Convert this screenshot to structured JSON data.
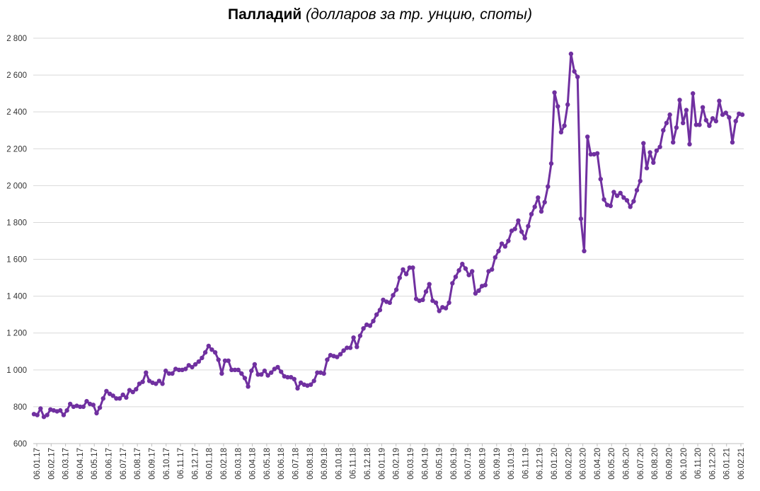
{
  "chart_data": {
    "type": "line",
    "title": "Палладий",
    "subtitle": "(долларов за тр. унцию, споты)",
    "ylim": [
      600,
      2800
    ],
    "y_ticks": [
      600,
      800,
      1000,
      1200,
      1400,
      1600,
      1800,
      2000,
      2200,
      2400,
      2600,
      2800
    ],
    "y_tick_labels": [
      "600",
      "800",
      "1 000",
      "1 200",
      "1 400",
      "1 600",
      "1 800",
      "2 000",
      "2 200",
      "2 400",
      "2 600",
      "2 800"
    ],
    "x_tick_labels": [
      "06.01.17",
      "06.02.17",
      "06.03.17",
      "06.04.17",
      "06.05.17",
      "06.06.17",
      "06.07.17",
      "06.08.17",
      "06.09.17",
      "06.10.17",
      "06.11.17",
      "06.12.17",
      "06.01.18",
      "06.02.18",
      "06.03.18",
      "06.04.18",
      "06.05.18",
      "06.06.18",
      "06.07.18",
      "06.08.18",
      "06.09.18",
      "06.10.18",
      "06.11.18",
      "06.12.18",
      "06.01.19",
      "06.02.19",
      "06.03.19",
      "06.04.19",
      "06.05.19",
      "06.06.19",
      "06.07.19",
      "06.08.19",
      "06.09.19",
      "06.10.19",
      "06.11.19",
      "06.12.19",
      "06.01.20",
      "06.02.20",
      "06.03.20",
      "06.04.20",
      "06.05.20",
      "06.06.20",
      "06.07.20",
      "06.08.20",
      "06.09.20",
      "06.10.20",
      "06.11.20",
      "06.12.20",
      "06.01.21",
      "06.02.21"
    ],
    "grid": true,
    "legend": "none",
    "series": [
      {
        "color": "#7030a0",
        "values": [
          760,
          755,
          790,
          745,
          755,
          785,
          780,
          775,
          780,
          755,
          780,
          815,
          800,
          805,
          800,
          800,
          830,
          815,
          810,
          765,
          795,
          845,
          885,
          870,
          860,
          845,
          845,
          865,
          850,
          890,
          880,
          895,
          925,
          935,
          985,
          940,
          930,
          925,
          940,
          925,
          995,
          980,
          980,
          1005,
          1000,
          1000,
          1005,
          1025,
          1015,
          1030,
          1045,
          1065,
          1095,
          1130,
          1110,
          1095,
          1055,
          980,
          1050,
          1050,
          1000,
          1000,
          1000,
          980,
          955,
          910,
          995,
          1030,
          975,
          975,
          995,
          970,
          985,
          1005,
          1015,
          990,
          965,
          960,
          960,
          950,
          900,
          930,
          920,
          915,
          920,
          940,
          985,
          985,
          980,
          1055,
          1080,
          1075,
          1070,
          1085,
          1105,
          1120,
          1120,
          1175,
          1125,
          1185,
          1225,
          1245,
          1240,
          1265,
          1300,
          1325,
          1380,
          1370,
          1365,
          1405,
          1435,
          1500,
          1545,
          1520,
          1555,
          1555,
          1385,
          1375,
          1380,
          1425,
          1465,
          1375,
          1365,
          1320,
          1340,
          1335,
          1365,
          1470,
          1505,
          1540,
          1575,
          1550,
          1515,
          1535,
          1415,
          1430,
          1455,
          1460,
          1535,
          1545,
          1610,
          1645,
          1685,
          1670,
          1700,
          1755,
          1765,
          1810,
          1750,
          1715,
          1780,
          1845,
          1885,
          1935,
          1860,
          1910,
          1995,
          2120,
          2505,
          2430,
          2290,
          2325,
          2440,
          2715,
          2620,
          2590,
          1820,
          1645,
          2265,
          2170,
          2170,
          2175,
          2035,
          1925,
          1895,
          1890,
          1965,
          1945,
          1960,
          1935,
          1920,
          1885,
          1915,
          1975,
          2025,
          2230,
          2095,
          2180,
          2125,
          2190,
          2210,
          2300,
          2340,
          2385,
          2235,
          2315,
          2465,
          2340,
          2410,
          2225,
          2500,
          2330,
          2330,
          2425,
          2355,
          2325,
          2365,
          2350,
          2460,
          2385,
          2395,
          2370,
          2235,
          2350,
          2390,
          2385
        ]
      }
    ]
  }
}
